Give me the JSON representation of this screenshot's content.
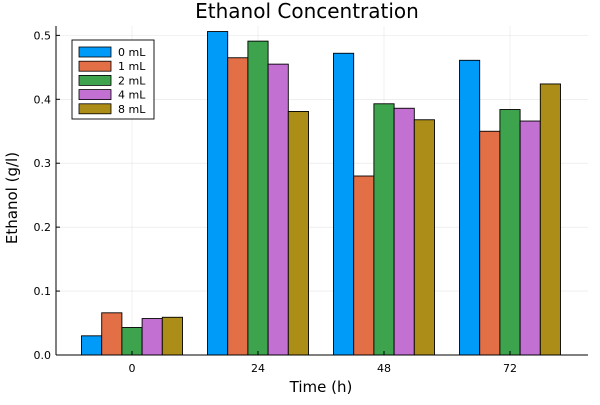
{
  "chart_data": {
    "type": "bar",
    "title": "Ethanol Concentration",
    "xlabel": "Time (h)",
    "ylabel": "Ethanol (g/l)",
    "categories": [
      "0",
      "24",
      "48",
      "72"
    ],
    "ylim": [
      0,
      0.5
    ],
    "yticks": [
      "0.0",
      "0.1",
      "0.2",
      "0.3",
      "0.4",
      "0.5"
    ],
    "grid": true,
    "legend_position": "top-left",
    "series": [
      {
        "name": "0 mL",
        "color": "#009af9",
        "values": [
          0.03,
          0.506,
          0.472,
          0.461
        ]
      },
      {
        "name": "1 mL",
        "color": "#e26f46",
        "values": [
          0.066,
          0.465,
          0.28,
          0.35
        ]
      },
      {
        "name": "2 mL",
        "color": "#3da44d",
        "values": [
          0.043,
          0.491,
          0.393,
          0.384
        ]
      },
      {
        "name": "4 mL",
        "color": "#c271d2",
        "values": [
          0.057,
          0.455,
          0.386,
          0.366
        ]
      },
      {
        "name": "8 mL",
        "color": "#ac8d18",
        "values": [
          0.059,
          0.381,
          0.368,
          0.424
        ]
      }
    ]
  }
}
